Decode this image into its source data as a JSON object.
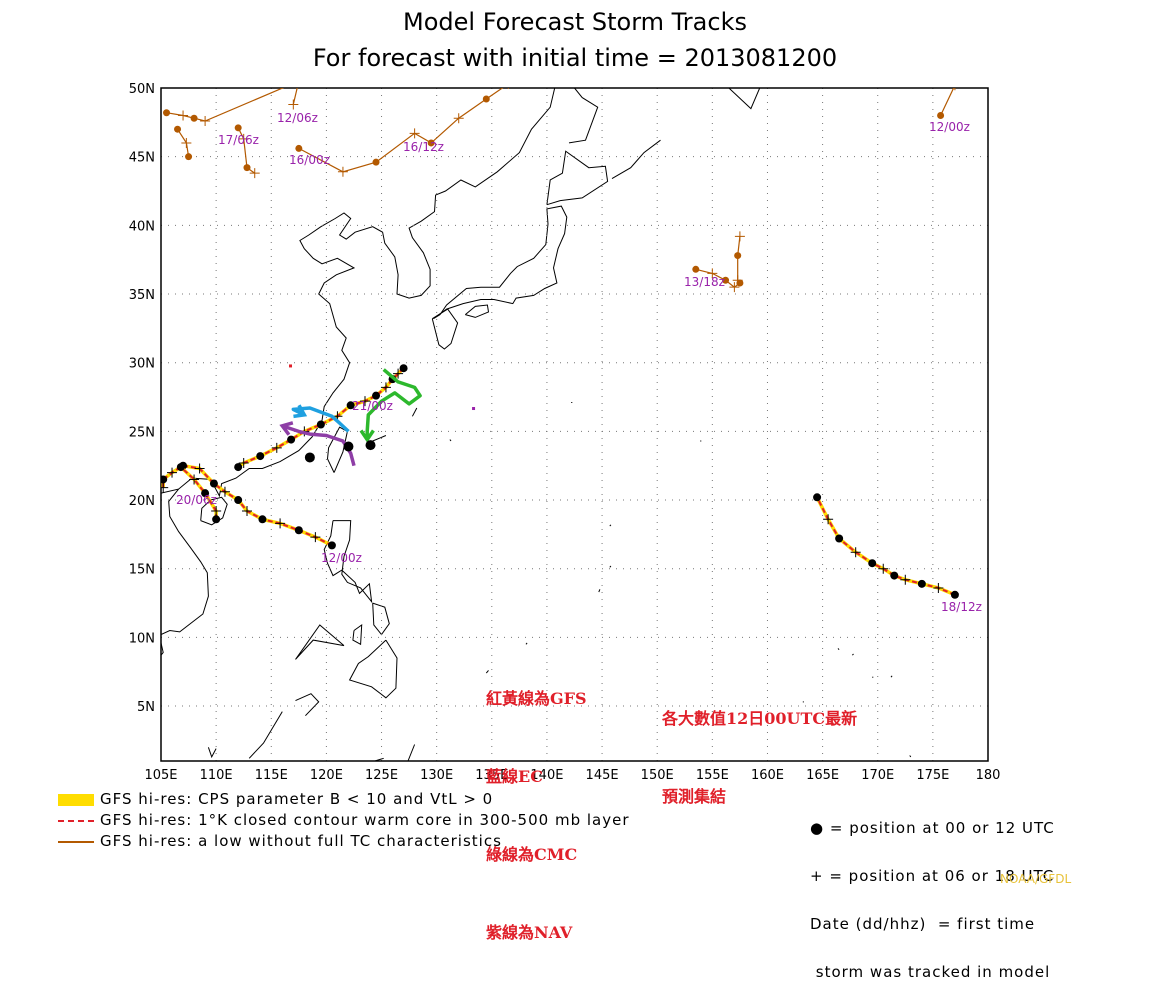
{
  "title": {
    "line1": "Model Forecast Storm Tracks",
    "line2": "For forecast with initial time = 2013081200"
  },
  "axes": {
    "lon_labels": [
      "105E",
      "110E",
      "115E",
      "120E",
      "125E",
      "130E",
      "135E",
      "140E",
      "145E",
      "150E",
      "155E",
      "160E",
      "165E",
      "170E",
      "175E",
      "180"
    ],
    "lat_labels": [
      "50N",
      "45N",
      "40N",
      "35N",
      "30N",
      "25N",
      "20N",
      "15N",
      "10N",
      "5N"
    ]
  },
  "legend": {
    "items": [
      {
        "label": "GFS hi-res: CPS parameter B < 10 and VtL > 0",
        "color": "#ffdd00"
      },
      {
        "label": "GFS hi-res: 1°K closed contour warm core in 300-500 mb layer",
        "color": "#e0202a"
      },
      {
        "label": "GFS hi-res: a low without full TC characteristics",
        "color": "#b35900"
      }
    ],
    "key_line1": "● = position at 00 or 12 UTC",
    "key_line2": "+ = position at 06 or 18 UTC",
    "key_line3": "Date (dd/hhz)  = first time",
    "key_line4": " storm was tracked in model"
  },
  "annotations": {
    "model_notes": [
      "紅黃線為GFS",
      "藍線EC",
      "綠線為CMC",
      "紫線為NAV"
    ],
    "ensemble_note": [
      "各大數值12日00UTC最新",
      "預測集結"
    ]
  },
  "track_labels": [
    "12/06z",
    "17/06z",
    "16/00z",
    "16/12z",
    "12/00z",
    "13/18z",
    "21/00z",
    "20/06z",
    "12/00z",
    "18/12z"
  ],
  "credit": "NOAA/GFDL",
  "colors": {
    "gfs_yellow": "#ffdd00",
    "gfs_red": "#e0202a",
    "gfs_brown": "#b35900",
    "ec_blue": "#1fa0e0",
    "cmc_green": "#2db82d",
    "nav_purple": "#8e3ea6",
    "label_purple": "#9922aa"
  },
  "chart_data": {
    "type": "map",
    "lon_range": [
      105,
      180
    ],
    "lat_range": [
      1,
      50
    ],
    "grid": true,
    "tracks": [
      {
        "model": "GFS",
        "id": "soulik-cpac",
        "first_time": "18/12z",
        "points": [
          [
            177,
            13.1
          ],
          [
            175.5,
            13.6
          ],
          [
            174,
            13.9
          ],
          [
            172.5,
            14.2
          ],
          [
            171.5,
            14.5
          ],
          [
            170.5,
            15
          ],
          [
            169.5,
            15.4
          ],
          [
            168,
            16.2
          ],
          [
            166.5,
            17.2
          ],
          [
            165.5,
            18.6
          ],
          [
            164.5,
            20.2
          ]
        ]
      },
      {
        "model": "GFS",
        "id": "utor-scs",
        "first_time": "12/00z",
        "points": [
          [
            120.5,
            16.7
          ],
          [
            119,
            17.3
          ],
          [
            117.5,
            17.8
          ],
          [
            115.8,
            18.3
          ],
          [
            114.2,
            18.6
          ],
          [
            112.8,
            19.2
          ],
          [
            112,
            20
          ],
          [
            110.8,
            20.6
          ],
          [
            109.8,
            21.2
          ],
          [
            108.5,
            22.3
          ],
          [
            107,
            22.5
          ],
          [
            106,
            22
          ],
          [
            105.2,
            21.5
          ],
          [
            105.2,
            20.9
          ]
        ]
      },
      {
        "model": "GFS",
        "id": "south-china",
        "first_time": "20/06z",
        "points": [
          [
            110,
            18.6
          ],
          [
            110,
            19.2
          ],
          [
            109,
            20.5
          ],
          [
            108,
            21.5
          ],
          [
            106.8,
            22.4
          ]
        ]
      },
      {
        "model": "GFS",
        "id": "taiwan-strait",
        "first_time": "21/00z",
        "points": [
          [
            127,
            29.6
          ],
          [
            126.5,
            29.2
          ],
          [
            126,
            28.8
          ],
          [
            125.4,
            28.2
          ],
          [
            124.5,
            27.6
          ],
          [
            123.5,
            27.2
          ],
          [
            122.2,
            26.9
          ],
          [
            121,
            26.1
          ],
          [
            119.5,
            25.5
          ],
          [
            118,
            25
          ],
          [
            116.8,
            24.4
          ],
          [
            115.5,
            23.8
          ],
          [
            114,
            23.2
          ],
          [
            112.5,
            22.7
          ],
          [
            112,
            22.4
          ]
        ]
      },
      {
        "model": "EC",
        "id": "ec-taiwan",
        "first_time": "",
        "points": [
          [
            122,
            25
          ],
          [
            121.2,
            25.6
          ],
          [
            120.5,
            26.1
          ],
          [
            119.5,
            26.4
          ],
          [
            118.5,
            26.7
          ],
          [
            117,
            26.6
          ],
          [
            118,
            26.2
          ]
        ]
      },
      {
        "model": "CMC",
        "id": "cmc-okinawa",
        "first_time": "",
        "points": [
          [
            125.2,
            29.5
          ],
          [
            126.5,
            28.6
          ],
          [
            128,
            28.2
          ],
          [
            128.5,
            27.6
          ],
          [
            127.5,
            27
          ],
          [
            126.2,
            27.8
          ],
          [
            125,
            27.2
          ],
          [
            123.8,
            26.2
          ],
          [
            123.7,
            25
          ],
          [
            123.7,
            24.4
          ]
        ]
      },
      {
        "model": "NAV",
        "id": "nav-taiwan",
        "first_time": "",
        "points": [
          [
            122.5,
            22.5
          ],
          [
            122.2,
            23.4
          ],
          [
            121.5,
            24.3
          ],
          [
            120,
            24.7
          ],
          [
            118.5,
            24.8
          ],
          [
            117.5,
            25
          ],
          [
            116,
            25.4
          ]
        ]
      },
      {
        "model": "GFS",
        "id": "north-pacific",
        "first_time": "13/18z",
        "points": [
          [
            153.5,
            36.8
          ],
          [
            155,
            36.5
          ],
          [
            156.2,
            36
          ],
          [
            157,
            35.5
          ],
          [
            157.5,
            35.8
          ],
          [
            157.3,
            36
          ],
          [
            157.3,
            37.8
          ],
          [
            157.5,
            39.2
          ]
        ]
      },
      {
        "model": "GFS",
        "id": "aleutian",
        "first_time": "12/00z",
        "points": [
          [
            175.7,
            48
          ],
          [
            177,
            50.2
          ]
        ]
      },
      {
        "model": "GFS",
        "id": "mongolia-a",
        "first_time": "17/06z",
        "points": [
          [
            112,
            47.1
          ],
          [
            112.5,
            46.3
          ],
          [
            112.8,
            44.2
          ],
          [
            113.5,
            43.8
          ]
        ]
      },
      {
        "model": "GFS",
        "id": "mongolia-b",
        "first_time": "16/00z",
        "points": [
          [
            117.5,
            45.6
          ],
          [
            121.5,
            43.9
          ],
          [
            124.5,
            44.6
          ],
          [
            128,
            46.7
          ],
          [
            129.5,
            46
          ],
          [
            132,
            47.8
          ],
          [
            134.5,
            49.2
          ],
          [
            136.5,
            50.3
          ]
        ]
      },
      {
        "model": "GFS",
        "id": "mongolia-c",
        "first_time": "12/06z",
        "points": [
          [
            105.5,
            48.2
          ],
          [
            107,
            48
          ],
          [
            108,
            47.8
          ],
          [
            109,
            47.6
          ],
          [
            117.5,
            50.5
          ],
          [
            117,
            48.8
          ]
        ]
      },
      {
        "model": "GFS",
        "id": "mongolia-d",
        "first_time": "",
        "points": [
          [
            107.5,
            45
          ],
          [
            107.3,
            46
          ],
          [
            106.5,
            47
          ]
        ]
      }
    ]
  }
}
